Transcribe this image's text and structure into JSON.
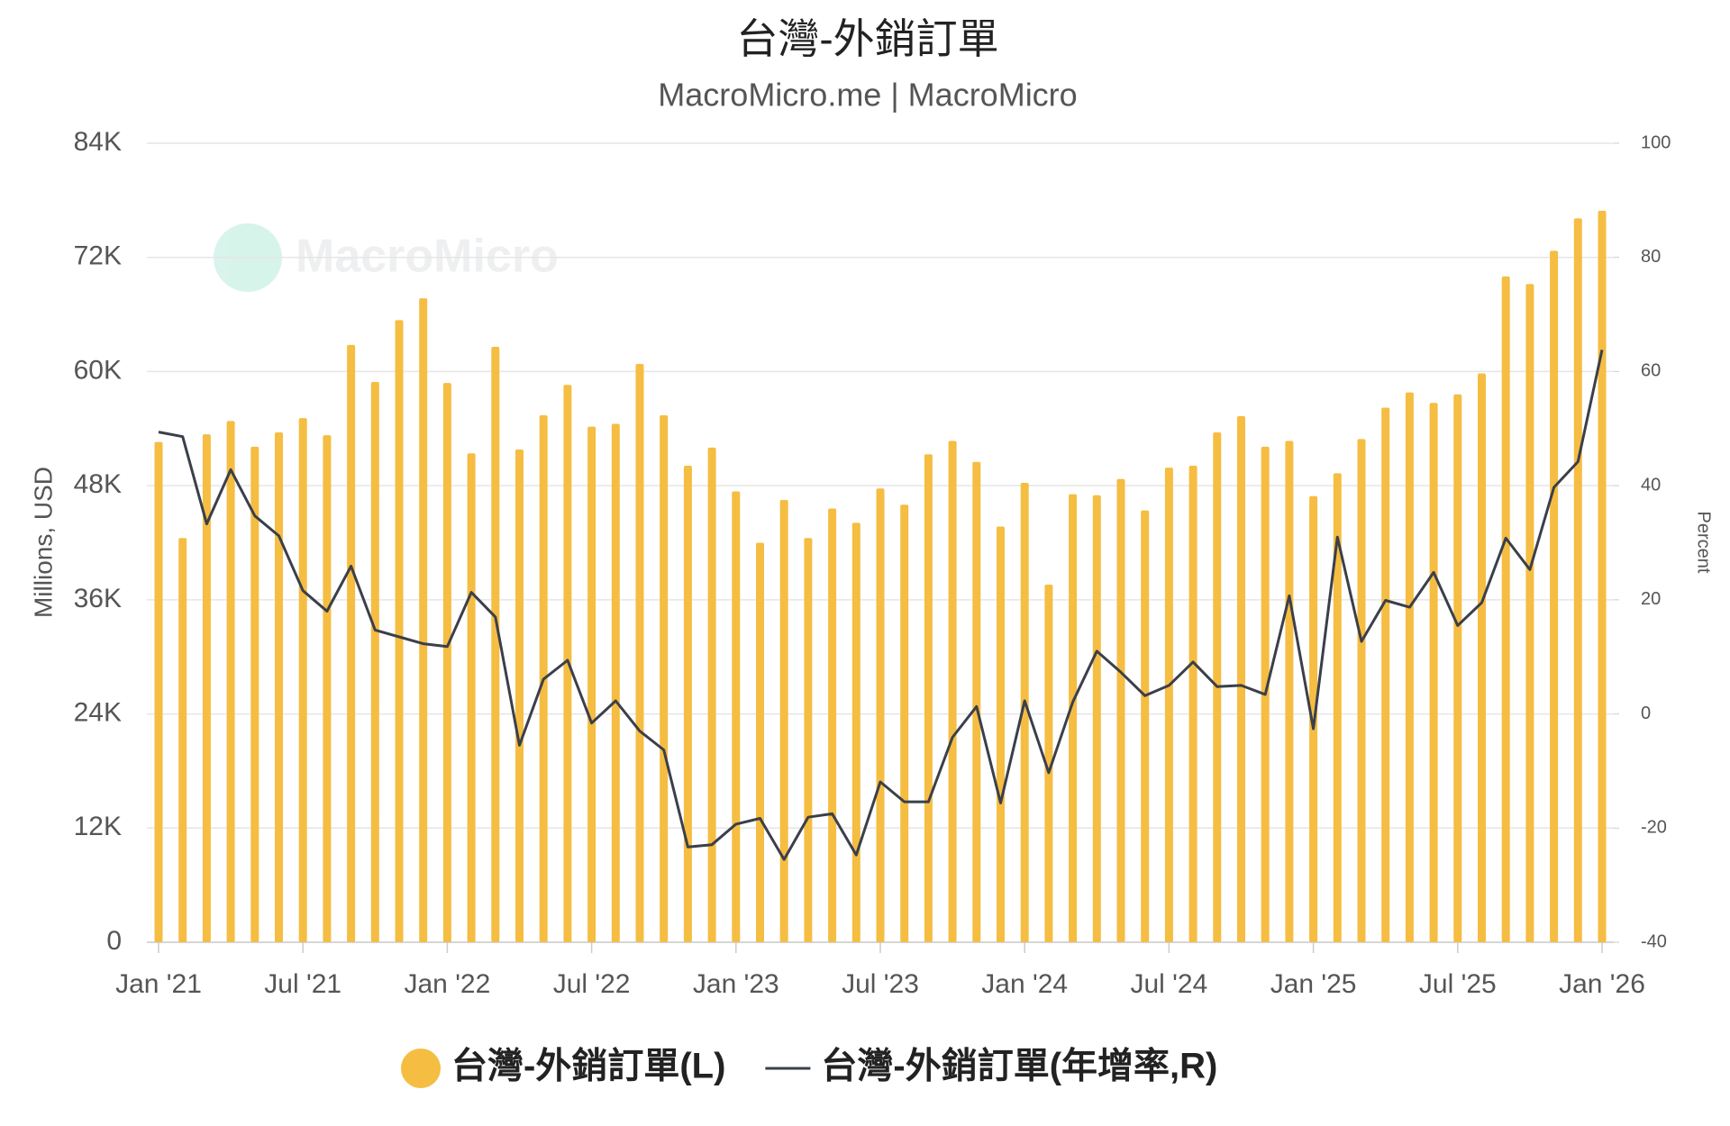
{
  "chart_data": {
    "type": "bar",
    "title": "台灣-外銷訂單",
    "subtitle": "MacroMicro.me | MacroMicro",
    "watermark": "MacroMicro",
    "y_label": "Millions, USD",
    "y2_label": "Percent",
    "categories": [
      "Jan '21",
      null,
      null,
      null,
      null,
      null,
      "Jul '21",
      null,
      null,
      null,
      null,
      null,
      "Jan '22",
      null,
      null,
      null,
      null,
      null,
      "Jul '22",
      null,
      null,
      null,
      null,
      null,
      "Jan '23",
      null,
      null,
      null,
      null,
      null,
      "Jul '23",
      null,
      null,
      null,
      null,
      null,
      "Jan '24",
      null,
      null,
      null,
      null,
      null,
      "Jul '24",
      null,
      null,
      null,
      null,
      null,
      "Jan '25",
      null,
      null,
      null,
      null,
      null,
      "Jul '25",
      null,
      null,
      null,
      null,
      null,
      "Jan '26"
    ],
    "series": [
      {
        "name": "台灣-外銷訂單(L)",
        "type": "bar",
        "color": "#f5bd42",
        "values": [
          52.6,
          42.5,
          53.4,
          54.8,
          52.1,
          53.6,
          55.1,
          53.3,
          62.8,
          58.9,
          65.4,
          67.7,
          58.8,
          51.4,
          62.6,
          51.8,
          55.4,
          58.6,
          54.2,
          54.5,
          60.8,
          55.4,
          50.1,
          52.0,
          47.4,
          42.0,
          46.5,
          42.5,
          45.6,
          44.1,
          47.7,
          46.0,
          51.3,
          52.7,
          50.5,
          43.7,
          48.3,
          37.6,
          47.1,
          47.0,
          48.7,
          45.4,
          49.9,
          50.1,
          53.6,
          55.3,
          52.1,
          52.7,
          46.9,
          49.3,
          52.9,
          56.2,
          57.8,
          56.7,
          57.6,
          59.8,
          70.0,
          69.2,
          72.7,
          76.1,
          76.9
        ]
      },
      {
        "name": "台灣-外銷訂單(年增率,R)",
        "type": "line",
        "axis": "y2",
        "color": "#3a3f4b",
        "values": [
          49.4,
          48.6,
          33.3,
          42.8,
          34.7,
          31.2,
          21.6,
          18.0,
          25.9,
          14.7,
          13.5,
          12.3,
          11.8,
          21.3,
          17.0,
          -5.5,
          6.1,
          9.4,
          -1.6,
          2.3,
          -3.0,
          -6.3,
          -23.3,
          -22.9,
          -19.3,
          -18.3,
          -25.5,
          -18.1,
          -17.5,
          -24.7,
          -11.9,
          -15.4,
          -15.4,
          -4.1,
          1.3,
          -15.6,
          2.3,
          -10.3,
          2.1,
          11.0,
          7.3,
          3.2,
          5.0,
          9.1,
          4.8,
          5.0,
          3.4,
          20.7,
          -2.6,
          31.0,
          12.7,
          19.9,
          18.7,
          24.8,
          15.5,
          19.5,
          30.8,
          25.3,
          39.7,
          44.2,
          63.8
        ]
      }
    ],
    "ylim": [
      0,
      84
    ],
    "yticks": [
      0,
      {
        "value": 12,
        "label": "12K"
      },
      {
        "value": 24,
        "label": "24K"
      },
      {
        "value": 36,
        "label": "36K"
      },
      {
        "value": 48,
        "label": "48K"
      },
      {
        "value": 60,
        "label": "60K"
      },
      {
        "value": 72,
        "label": "72K"
      },
      {
        "value": 84,
        "label": "84K"
      }
    ],
    "y2lim": [
      -40,
      100
    ],
    "y2ticks": [
      -40,
      -20,
      0,
      20,
      40,
      60,
      80,
      100
    ],
    "grid": true,
    "legend": "bottom"
  }
}
